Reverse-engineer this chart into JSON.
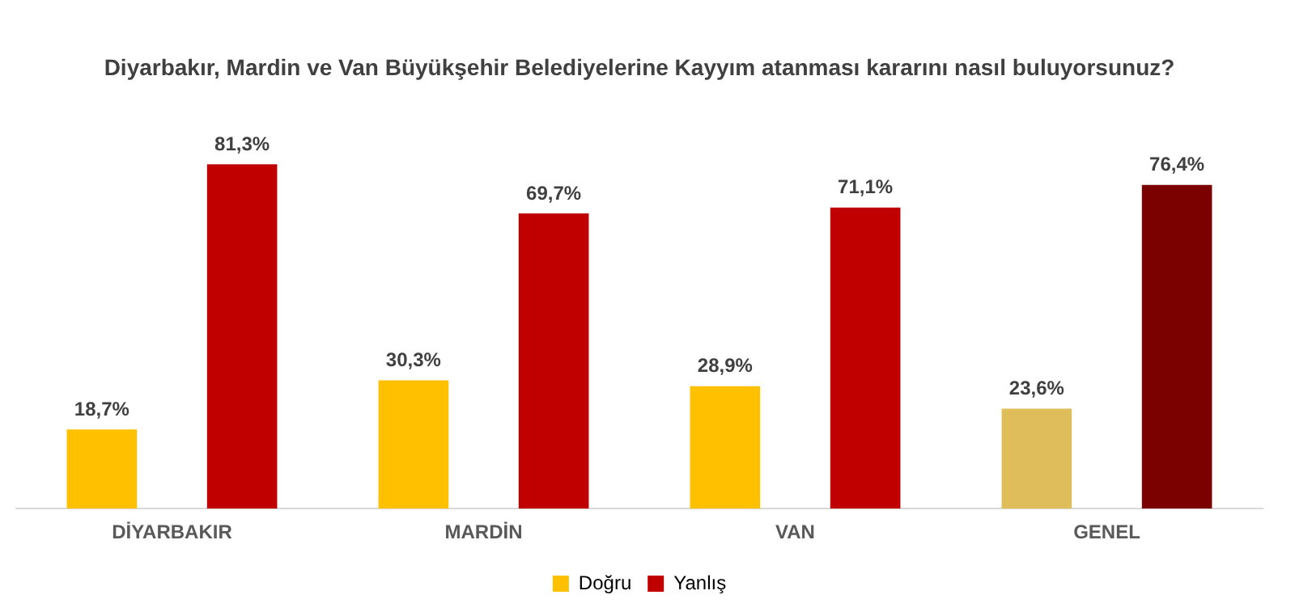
{
  "chart_data": {
    "type": "bar",
    "title": "Diyarbakır, Mardin ve Van Büyükşehir Belediyelerine Kayyım atanması kararını nasıl buluyorsunuz?",
    "categories": [
      "DİYARBAKIR",
      "MARDİN",
      "VAN",
      "GENEL"
    ],
    "legend": "bottom",
    "grid": false,
    "series": [
      {
        "name": "Doğru",
        "color": "#ffc000",
        "colors": [
          "#ffc000",
          "#ffc000",
          "#ffc000",
          "#dfbd5a"
        ],
        "values": [
          18.7,
          30.3,
          28.9,
          23.6
        ],
        "value_labels": [
          "18,7%",
          "30,3%",
          "28,9%",
          "23,6%"
        ]
      },
      {
        "name": "Yanlış",
        "color": "#c00000",
        "colors": [
          "#c00000",
          "#c00000",
          "#c00000",
          "#7b0000"
        ],
        "values": [
          81.3,
          69.7,
          71.1,
          76.4
        ],
        "value_labels": [
          "81,3%",
          "69,7%",
          "71,1%",
          "76,4%"
        ]
      }
    ]
  }
}
